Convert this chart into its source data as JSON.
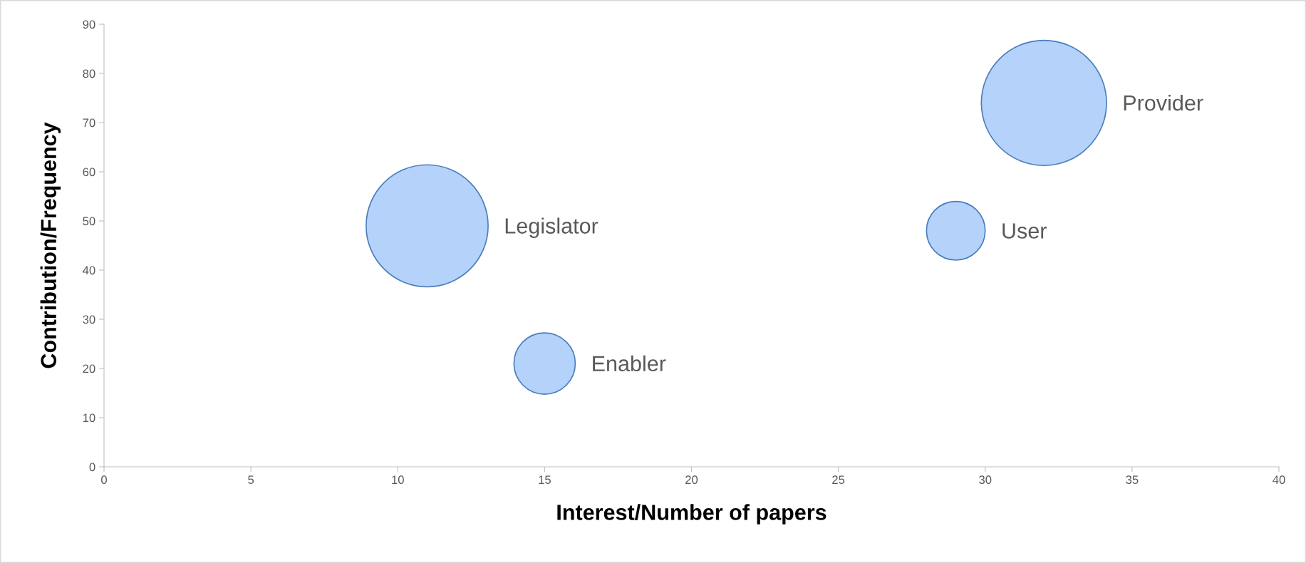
{
  "chart_data": {
    "type": "bubble",
    "xlabel": "Interest/Number of papers",
    "ylabel": "Contribution/Frequency",
    "xlim": [
      0,
      40
    ],
    "xticks": [
      0,
      5,
      10,
      15,
      20,
      25,
      30,
      35,
      40
    ],
    "ylim": [
      0,
      90
    ],
    "yticks": [
      0,
      10,
      20,
      30,
      40,
      50,
      60,
      70,
      80,
      90
    ],
    "grid": false,
    "legend": false,
    "series": [
      {
        "name": "Legislator",
        "color": "#b4d2fa",
        "x": [
          11
        ],
        "values": [
          49
        ],
        "sizes": [
          0.95
        ]
      },
      {
        "name": "Enabler",
        "color": "#b4d2fa",
        "x": [
          15
        ],
        "values": [
          21
        ],
        "sizes": [
          0.24
        ]
      },
      {
        "name": "User",
        "color": "#b4d2fa",
        "x": [
          29
        ],
        "values": [
          48
        ],
        "sizes": [
          0.22
        ]
      },
      {
        "name": "Provider",
        "color": "#b4d2fa",
        "x": [
          32
        ],
        "values": [
          74
        ],
        "sizes": [
          1
        ]
      }
    ]
  }
}
